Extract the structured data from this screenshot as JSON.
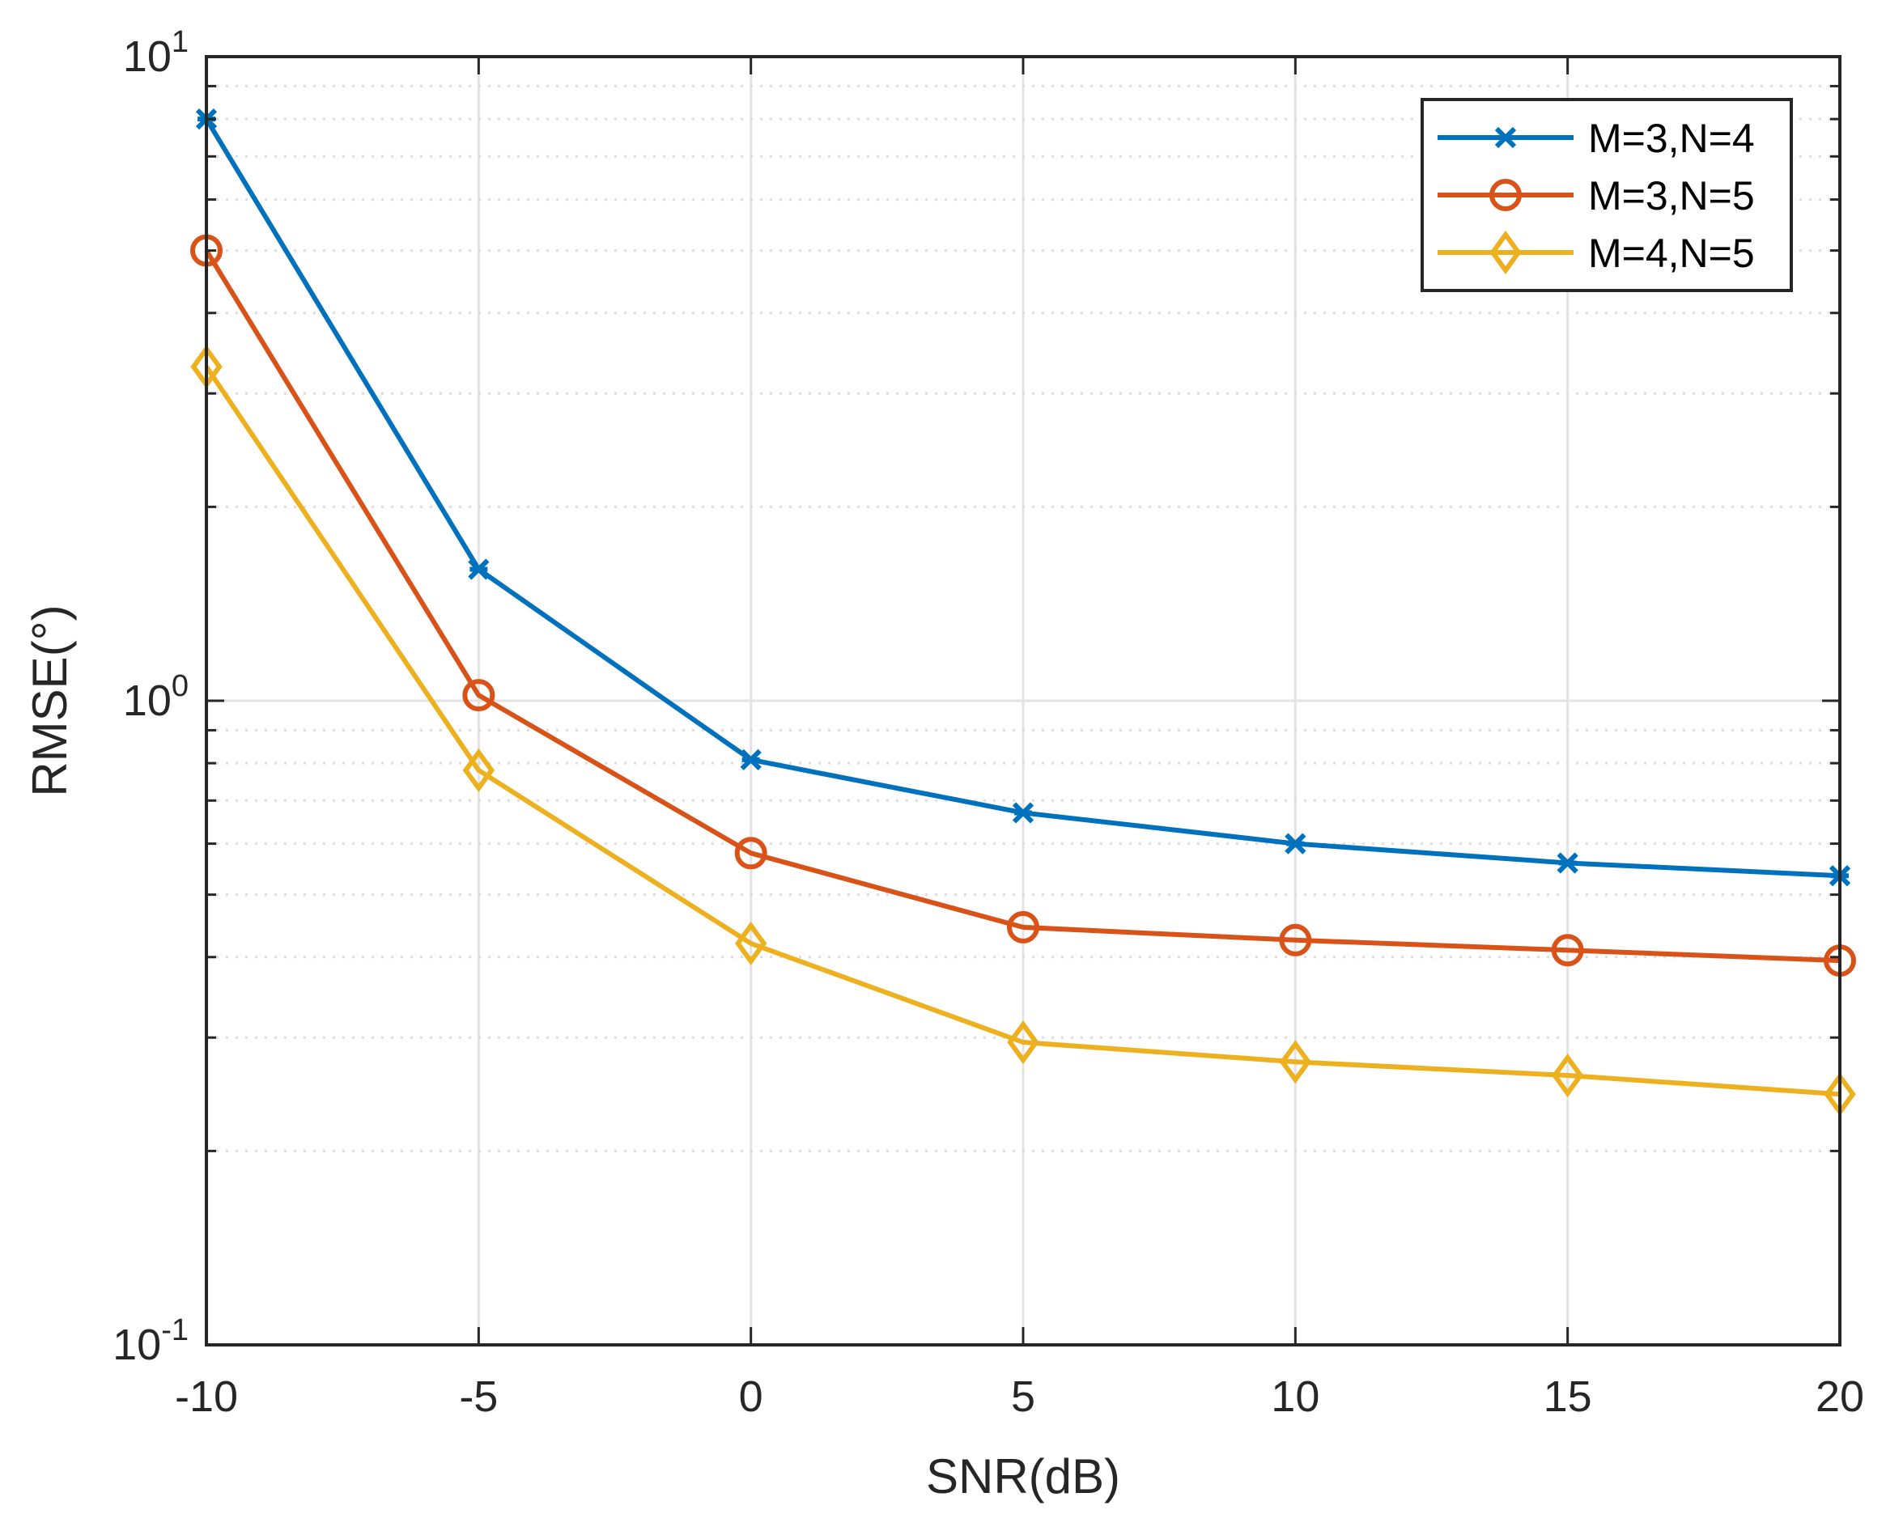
{
  "chart_data": {
    "type": "line",
    "title": "",
    "xlabel": "SNR(dB)",
    "ylabel": "RMSE(°)",
    "yscale": "log",
    "xlim": [
      -10,
      20
    ],
    "ylim": [
      0.1,
      10
    ],
    "grid": true,
    "legend_position": "top-right",
    "x": [
      -10,
      -5,
      0,
      5,
      10,
      15,
      20
    ],
    "xticks": [
      "-10",
      "-5",
      "0",
      "5",
      "10",
      "15",
      "20"
    ],
    "yticks": [
      {
        "value": 0.1,
        "base": "10",
        "exp": "-1"
      },
      {
        "value": 1,
        "base": "10",
        "exp": "0"
      },
      {
        "value": 10,
        "base": "10",
        "exp": "1"
      }
    ],
    "series": [
      {
        "name": "M=3,N=4",
        "color": "#0072BD",
        "marker": "x-star",
        "values": [
          8.0,
          1.6,
          0.81,
          0.67,
          0.6,
          0.56,
          0.535
        ]
      },
      {
        "name": "M=3,N=5",
        "color": "#D95319",
        "marker": "circle",
        "values": [
          5.0,
          1.02,
          0.58,
          0.445,
          0.425,
          0.41,
          0.395
        ]
      },
      {
        "name": "M=4,N=5",
        "color": "#EDB120",
        "marker": "diamond",
        "values": [
          3.3,
          0.78,
          0.42,
          0.295,
          0.275,
          0.262,
          0.245
        ]
      }
    ]
  }
}
